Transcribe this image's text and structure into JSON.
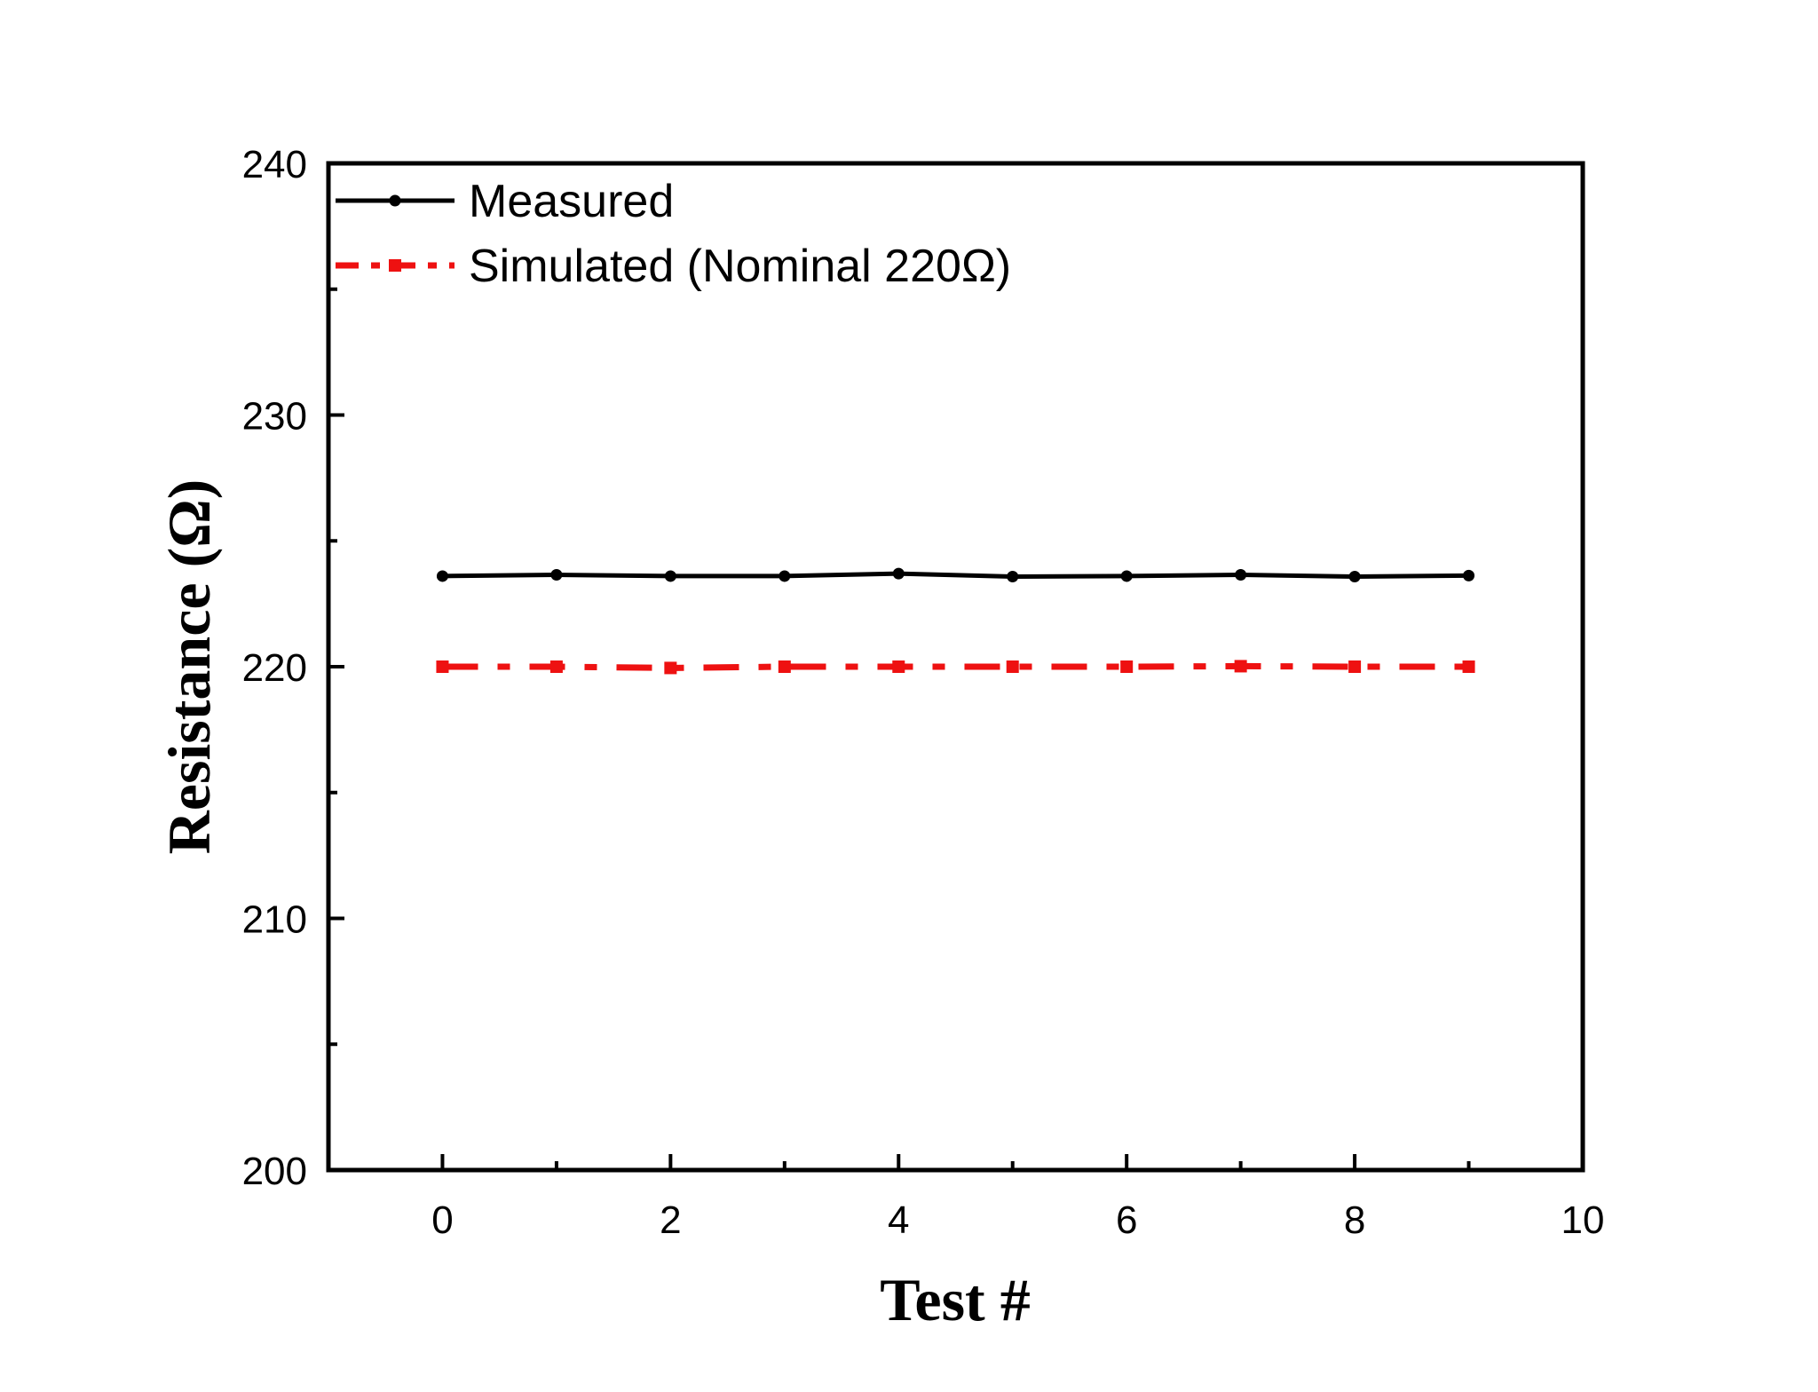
{
  "chart_data": {
    "type": "line",
    "title": "",
    "xlabel": "Test #",
    "ylabel": "Resistance (Ω)",
    "xlim": [
      -1,
      10
    ],
    "ylim": [
      200,
      240
    ],
    "x_ticks": [
      0,
      2,
      4,
      6,
      8,
      10
    ],
    "x_tick_labels": [
      "0",
      "2",
      "4",
      "6",
      "8",
      "10"
    ],
    "y_ticks": [
      200,
      210,
      220,
      230,
      240
    ],
    "y_tick_labels": [
      "200",
      "210",
      "220",
      "230",
      "240"
    ],
    "x_minor_ticks": [
      1,
      3,
      5,
      7,
      9
    ],
    "y_minor_ticks": [
      205,
      215,
      225,
      235
    ],
    "grid": false,
    "legend_position": "top-left",
    "series": [
      {
        "name": "Measured",
        "color": "#000000",
        "line_style": "solid",
        "marker": "circle",
        "x": [
          0,
          1,
          2,
          3,
          4,
          5,
          6,
          7,
          8,
          9
        ],
        "y": [
          223.6,
          223.65,
          223.6,
          223.6,
          223.7,
          223.58,
          223.6,
          223.65,
          223.58,
          223.62
        ]
      },
      {
        "name": "Simulated (Nominal 220Ω)",
        "color": "#ee1111",
        "line_style": "dash-dot",
        "marker": "square",
        "x": [
          0,
          1,
          2,
          3,
          4,
          5,
          6,
          7,
          8,
          9
        ],
        "y": [
          220.0,
          220.0,
          219.95,
          220.0,
          220.0,
          220.0,
          220.0,
          220.02,
          220.0,
          220.0
        ]
      }
    ]
  }
}
